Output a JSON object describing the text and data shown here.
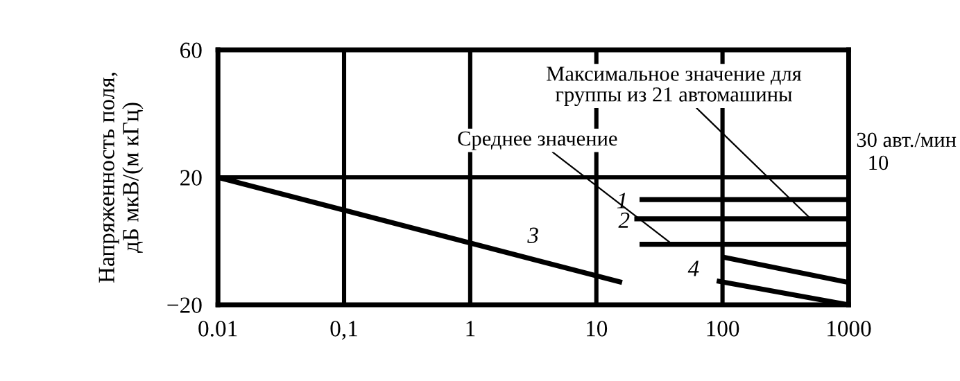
{
  "chart_data": {
    "type": "line",
    "ylabel": "Напряженность поля,\nдБ мкВ/(м кГц)",
    "log": "x",
    "xlim": [
      0.01,
      1000
    ],
    "xticks": [
      {
        "value": 0.01,
        "label": "0.01"
      },
      {
        "value": 0.1,
        "label": "0,1"
      },
      1,
      10,
      100,
      1000
    ],
    "ylim": [
      -20,
      60
    ],
    "yticks": [
      {
        "value": -20,
        "label": "−20"
      },
      20,
      60
    ],
    "grid": true,
    "series": [
      {
        "name": "1",
        "color": "#000000",
        "x": [
          22,
          1000
        ],
        "values": [
          13,
          13
        ]
      },
      {
        "color": "#000000",
        "x": [
          20,
          1000
        ],
        "values": [
          7,
          7
        ]
      },
      {
        "name": "2",
        "color": "#000000",
        "x": [
          22,
          1000
        ],
        "values": [
          -1,
          -1
        ]
      },
      {
        "name": "3",
        "color": "#000000",
        "x": [
          0.01,
          16
        ],
        "values": [
          20,
          -13
        ]
      },
      {
        "color": "#000000",
        "x": [
          100,
          1000
        ],
        "values": [
          -5,
          -13
        ]
      },
      {
        "name": "4",
        "color": "#000000",
        "x": [
          90,
          1000
        ],
        "values": [
          -12.5,
          -20
        ]
      }
    ],
    "annotations": [
      {
        "text": "Максимальное значение для\nгруппы из 21 автомашины",
        "x": 500,
        "y": 7
      },
      {
        "text": "Среднее значение",
        "x": 40,
        "y": -1
      },
      "30 авт./мин",
      "10"
    ]
  }
}
